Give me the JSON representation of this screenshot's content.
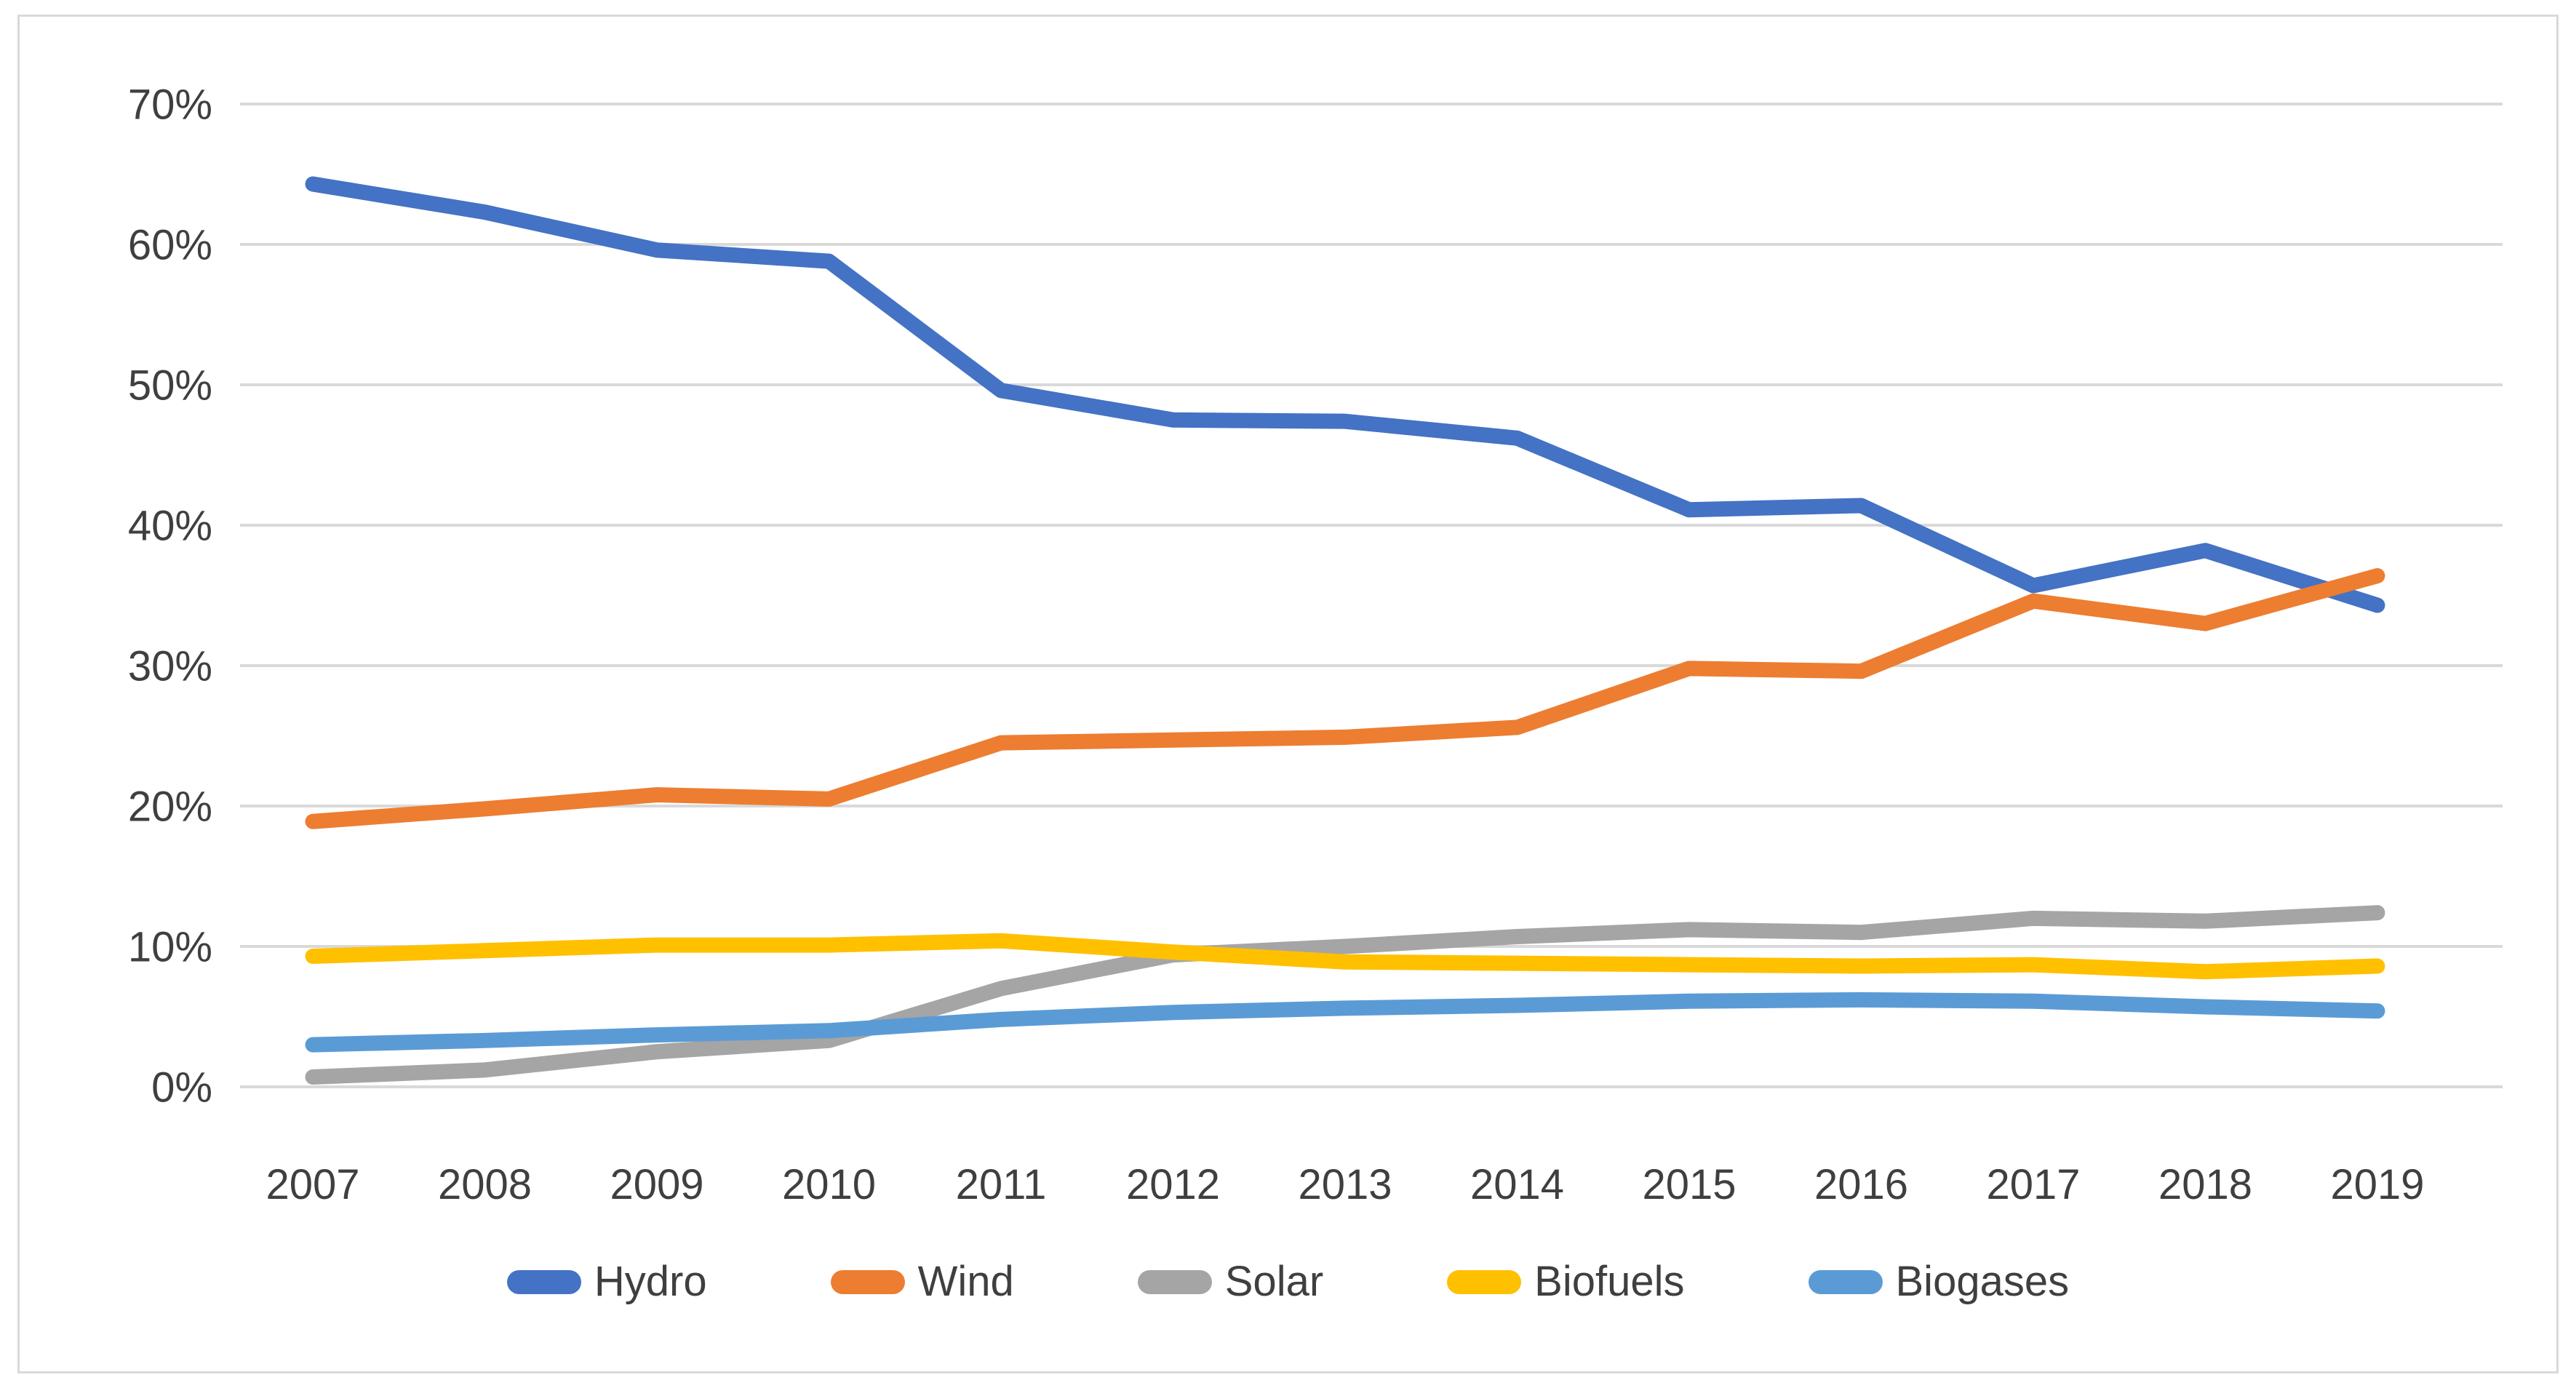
{
  "chart_data": {
    "type": "line",
    "title": "",
    "xlabel": "",
    "ylabel": "",
    "x": [
      2007,
      2008,
      2009,
      2010,
      2011,
      2012,
      2013,
      2014,
      2015,
      2016,
      2017,
      2018,
      2019
    ],
    "x_tick_labels": [
      "2007",
      "2008",
      "2009",
      "2010",
      "2011",
      "2012",
      "2013",
      "2014",
      "2015",
      "2016",
      "2017",
      "2018",
      "2019"
    ],
    "series": [
      {
        "name": "Hydro",
        "color": "#4472C4",
        "values": [
          64.3,
          62.3,
          59.6,
          58.8,
          49.6,
          47.5,
          47.4,
          46.2,
          41.1,
          41.4,
          35.7,
          38.2,
          34.3
        ]
      },
      {
        "name": "Wind",
        "color": "#ED7D31",
        "values": [
          18.9,
          19.8,
          20.8,
          20.5,
          24.5,
          24.7,
          24.9,
          25.6,
          29.8,
          29.6,
          34.6,
          33.0,
          36.4
        ]
      },
      {
        "name": "Solar",
        "color": "#A5A5A5",
        "values": [
          0.7,
          1.2,
          2.5,
          3.3,
          7.0,
          9.4,
          10.0,
          10.7,
          11.2,
          11.0,
          12.0,
          11.8,
          12.4
        ]
      },
      {
        "name": "Biofuels",
        "color": "#FFC000",
        "values": [
          9.3,
          9.7,
          10.1,
          10.1,
          10.4,
          9.6,
          8.9,
          8.8,
          8.7,
          8.6,
          8.7,
          8.2,
          8.6
        ]
      },
      {
        "name": "Biogases",
        "color": "#5B9BD5",
        "values": [
          3.0,
          3.3,
          3.7,
          4.0,
          4.8,
          5.3,
          5.6,
          5.8,
          6.1,
          6.2,
          6.1,
          5.7,
          5.4
        ]
      }
    ],
    "y_axis": {
      "min": 0,
      "max": 70,
      "step": 10,
      "tick_labels": [
        "0%",
        "10%",
        "20%",
        "30%",
        "40%",
        "50%",
        "60%",
        "70%"
      ]
    },
    "legend": {
      "position": "bottom",
      "entries": [
        "Hydro",
        "Wind",
        "Solar",
        "Biofuels",
        "Biogases"
      ]
    },
    "grid": true
  },
  "colors": {
    "background": "#ffffff",
    "frame_border": "#d9d9d9",
    "gridline": "#d9d9d9",
    "axis_text": "#3f3f3f"
  }
}
